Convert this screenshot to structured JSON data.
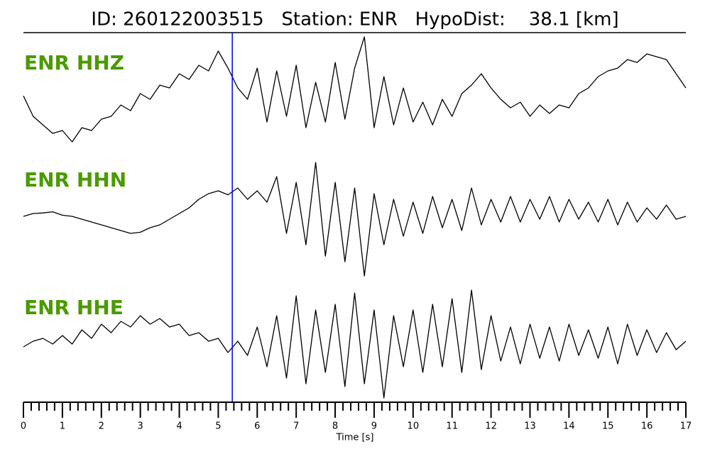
{
  "chart_data": {
    "type": "waveform",
    "title": "ID: 260122003515   Station: ENR   HypoDist:    38.1 [km]",
    "xlabel": "Time [s]",
    "xlim": [
      0,
      17
    ],
    "xticks": [
      0,
      1,
      2,
      3,
      4,
      5,
      6,
      7,
      8,
      9,
      10,
      11,
      12,
      13,
      14,
      15,
      16,
      17
    ],
    "xminor_ticks": [
      0.2,
      0.4,
      0.6,
      0.8,
      1.2,
      1.4,
      1.6,
      1.8,
      2.2,
      2.4,
      2.6,
      2.8,
      3.2,
      3.4,
      3.6,
      3.8,
      4.2,
      4.4,
      4.6,
      4.8,
      5.2,
      5.4,
      5.6,
      5.8,
      6.2,
      6.4,
      6.6,
      6.8,
      7.2,
      7.4,
      7.6,
      7.8,
      8.2,
      8.4,
      8.6,
      8.8,
      9.2,
      9.4,
      9.6,
      9.8,
      10.2,
      10.4,
      10.6,
      10.8,
      11.2,
      11.4,
      11.6,
      11.8,
      12.2,
      12.4,
      12.6,
      12.8,
      13.2,
      13.4,
      13.6,
      13.8,
      14.2,
      14.4,
      14.6,
      14.8,
      15.2,
      15.4,
      15.6,
      15.8,
      16.2,
      16.4,
      16.6,
      16.8
    ],
    "pick_time": 5.36,
    "pick_color": "#0000ff",
    "label_color": "#4a9a00",
    "ylim": [
      -1,
      1
    ],
    "x": [
      0,
      0.25,
      0.5,
      0.75,
      1,
      1.25,
      1.5,
      1.75,
      2,
      2.25,
      2.5,
      2.75,
      3,
      3.25,
      3.5,
      3.75,
      4,
      4.25,
      4.5,
      4.75,
      5,
      5.25,
      5.5,
      5.75,
      6,
      6.25,
      6.5,
      6.75,
      7,
      7.25,
      7.5,
      7.75,
      8,
      8.25,
      8.5,
      8.75,
      9,
      9.25,
      9.5,
      9.75,
      10,
      10.25,
      10.5,
      10.75,
      11,
      11.25,
      11.5,
      11.75,
      12,
      12.25,
      12.5,
      12.75,
      13,
      13.25,
      13.5,
      13.75,
      14,
      14.25,
      14.5,
      14.75,
      15,
      15.25,
      15.5,
      15.75,
      16,
      16.25,
      16.5,
      16.75,
      17
    ],
    "series": [
      {
        "name": "ENR HHZ",
        "color": "#000000",
        "values": [
          0.06,
          -0.3,
          -0.45,
          -0.6,
          -0.55,
          -0.75,
          -0.5,
          -0.55,
          -0.35,
          -0.3,
          -0.1,
          -0.2,
          0.1,
          0.0,
          0.25,
          0.2,
          0.45,
          0.35,
          0.6,
          0.5,
          0.85,
          0.55,
          0.2,
          0.0,
          0.55,
          -0.4,
          0.5,
          -0.3,
          0.6,
          -0.5,
          0.3,
          -0.4,
          0.65,
          -0.35,
          0.55,
          1.1,
          -0.5,
          0.4,
          -0.45,
          0.2,
          -0.4,
          -0.05,
          -0.45,
          0.0,
          -0.3,
          0.1,
          0.25,
          0.45,
          0.2,
          0.0,
          -0.15,
          -0.05,
          -0.3,
          -0.1,
          -0.25,
          -0.1,
          -0.15,
          0.1,
          0.2,
          0.4,
          0.5,
          0.55,
          0.7,
          0.65,
          0.8,
          0.75,
          0.7,
          0.45,
          0.2
        ]
      },
      {
        "name": "ENR HHN",
        "color": "#000000",
        "values": [
          0.0,
          0.05,
          0.06,
          0.08,
          0.02,
          0.0,
          -0.05,
          -0.1,
          -0.15,
          -0.2,
          -0.25,
          -0.3,
          -0.28,
          -0.2,
          -0.15,
          -0.05,
          0.05,
          0.15,
          0.3,
          0.4,
          0.45,
          0.38,
          0.5,
          0.3,
          0.45,
          0.25,
          0.7,
          -0.3,
          0.6,
          -0.5,
          0.95,
          -0.7,
          0.6,
          -0.8,
          0.5,
          -1.05,
          0.4,
          -0.5,
          0.3,
          -0.35,
          0.25,
          -0.3,
          0.35,
          -0.2,
          0.3,
          -0.25,
          0.5,
          -0.15,
          0.3,
          -0.1,
          0.35,
          -0.1,
          0.3,
          -0.05,
          0.35,
          -0.1,
          0.3,
          -0.05,
          0.25,
          -0.1,
          0.3,
          -0.15,
          0.25,
          -0.1,
          0.15,
          -0.05,
          0.2,
          -0.05,
          0.0
        ]
      },
      {
        "name": "ENR HHE",
        "color": "#000000",
        "values": [
          -0.05,
          0.05,
          0.1,
          0.0,
          0.15,
          0.0,
          0.25,
          0.1,
          0.35,
          0.2,
          0.4,
          0.3,
          0.5,
          0.35,
          0.45,
          0.3,
          0.35,
          0.15,
          0.2,
          0.05,
          0.1,
          -0.15,
          0.05,
          -0.2,
          0.3,
          -0.4,
          0.5,
          -0.6,
          0.85,
          -0.7,
          0.6,
          -0.5,
          0.7,
          -0.75,
          0.9,
          -0.7,
          0.6,
          -0.95,
          0.5,
          -0.4,
          0.6,
          -0.5,
          0.7,
          -0.4,
          0.8,
          -0.5,
          0.95,
          -0.45,
          0.5,
          -0.3,
          0.3,
          -0.35,
          0.35,
          -0.25,
          0.3,
          -0.3,
          0.35,
          -0.2,
          0.25,
          -0.25,
          0.3,
          -0.35,
          0.35,
          -0.2,
          0.25,
          -0.15,
          0.2,
          -0.1,
          0.05
        ]
      }
    ]
  }
}
